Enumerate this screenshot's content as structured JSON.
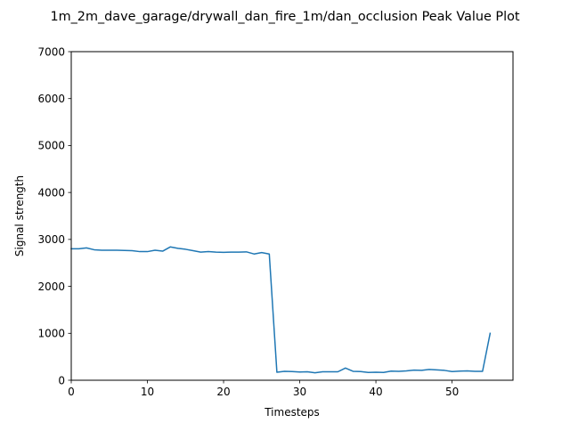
{
  "chart_data": {
    "type": "line",
    "title": "1m_2m_dave_garage/drywall_dan_fire_1m/dan_occlusion Peak Value Plot",
    "xlabel": "Timesteps",
    "ylabel": "Signal strength",
    "xlim": [
      0,
      58
    ],
    "ylim": [
      0,
      7000
    ],
    "xticks": [
      0,
      10,
      20,
      30,
      40,
      50
    ],
    "yticks": [
      0,
      1000,
      2000,
      3000,
      4000,
      5000,
      6000,
      7000
    ],
    "grid": false,
    "series": [
      {
        "color": "#1f77b4",
        "x": [
          0,
          1,
          2,
          3,
          4,
          5,
          6,
          7,
          8,
          9,
          10,
          11,
          12,
          13,
          14,
          15,
          16,
          17,
          18,
          19,
          20,
          21,
          22,
          23,
          24,
          25,
          26,
          27,
          28,
          29,
          30,
          31,
          32,
          33,
          34,
          35,
          36,
          37,
          38,
          39,
          40,
          41,
          42,
          43,
          44,
          45,
          46,
          47,
          48,
          49,
          50,
          51,
          52,
          53,
          54,
          55
        ],
        "values": [
          2800,
          2800,
          2820,
          2780,
          2770,
          2770,
          2770,
          2765,
          2760,
          2740,
          2740,
          2770,
          2750,
          2840,
          2810,
          2790,
          2760,
          2730,
          2740,
          2730,
          2725,
          2730,
          2730,
          2735,
          2690,
          2720,
          2690,
          170,
          190,
          185,
          175,
          180,
          160,
          180,
          180,
          180,
          260,
          190,
          185,
          165,
          170,
          165,
          195,
          190,
          200,
          215,
          210,
          230,
          220,
          210,
          185,
          195,
          200,
          190,
          190,
          1000
        ]
      }
    ]
  }
}
